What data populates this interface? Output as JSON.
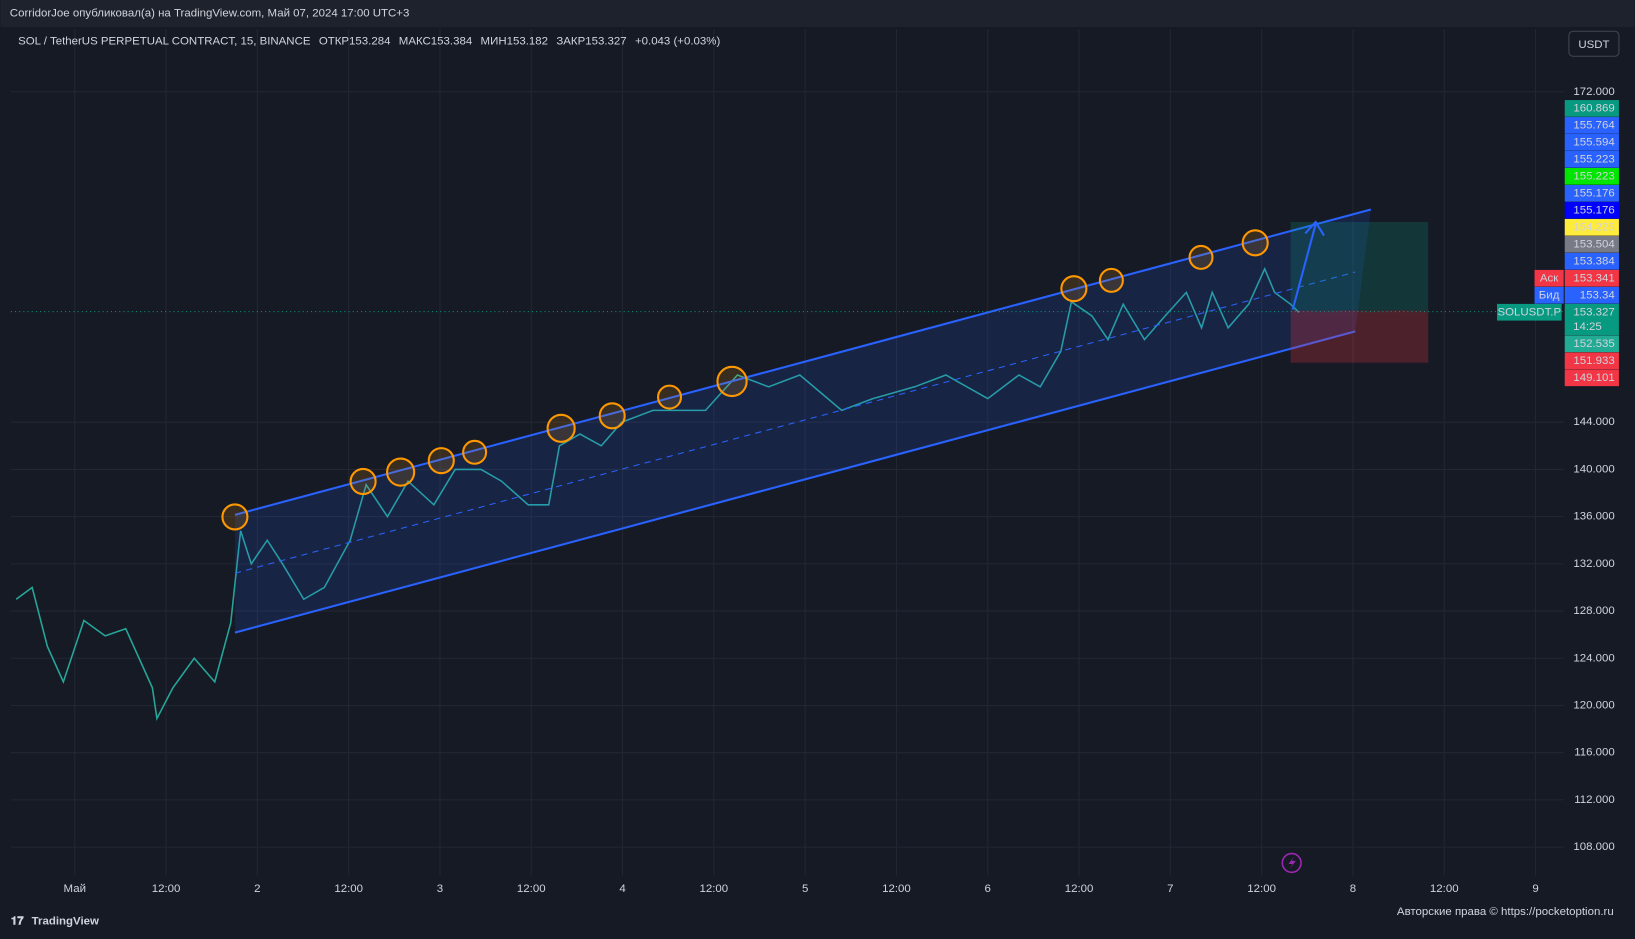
{
  "header": {
    "published": "CorridorJoe опубликовал(а) на TradingView.com, Май 07, 2024 17:00 UTC+3",
    "symbol": "SOL / TetherUS PERPETUAL CONTRACT, 15, BINANCE",
    "ohlc": [
      {
        "label": "ОТКР",
        "value": 153.284
      },
      {
        "label": "МАКС",
        "value": 153.384
      },
      {
        "label": "МИН",
        "value": 153.182
      },
      {
        "label": "ЗАКР",
        "value": 153.327
      }
    ],
    "change": "+0.043 (+0.03%)",
    "currency": "USDT"
  },
  "chart_data": {
    "type": "line",
    "x": [
      -7.7,
      -5.6,
      -3.6,
      -1.5,
      1.2,
      4.0,
      6.7,
      10.2,
      10.8,
      12.9,
      15.7,
      18.4,
      20.5,
      21.8,
      23.2,
      25.3,
      27.3,
      30.1,
      32.8,
      36.2,
      38.3,
      41.1,
      43.8,
      47.2,
      50.0,
      53.4,
      56.1,
      59.6,
      62.3,
      63.7,
      66.4,
      69.2,
      71.9,
      76.0,
      80.2,
      82.9,
      87.1,
      91.2,
      95.3,
      100.8,
      104.9,
      110.4,
      114.5,
      120.0,
      124.1,
      126.9,
      129.6,
      131.0,
      133.7,
      135.8,
      137.8,
      140.6,
      143.3,
      146.1,
      148.1,
      149.5,
      151.6,
      154.3,
      156.4,
      157.7,
      159.8,
      160.9
    ],
    "series": [
      {
        "name": "SOLUSDT.P",
        "color": "#26a69a",
        "values": [
          129.0,
          130.0,
          125.0,
          122.0,
          127.2,
          125.9,
          126.5,
          121.5,
          118.9,
          121.5,
          124.0,
          122.0,
          127.0,
          134.8,
          132.0,
          134.0,
          132.0,
          129.0,
          130.0,
          134.0,
          138.7,
          136.0,
          139.0,
          137.0,
          140.0,
          140.0,
          139.0,
          137.0,
          137.0,
          142.0,
          143.0,
          142.0,
          144.0,
          145.0,
          145.0,
          145.0,
          148.0,
          147.0,
          148.0,
          145.0,
          146.0,
          147.0,
          148.0,
          146.0,
          148.0,
          147.0,
          150.0,
          154.2,
          153.0,
          151.0,
          154.0,
          151.0,
          153.0,
          155.0,
          152.0,
          155.0,
          152.0,
          154.0,
          157.0,
          155.0,
          154.0,
          153.3
        ]
      }
    ],
    "xlim": [
      -8.4,
      195.7
    ],
    "xticks": [
      {
        "value": 0,
        "label": "Май"
      },
      {
        "value": 12,
        "label": "12:00"
      },
      {
        "value": 24,
        "label": "2"
      },
      {
        "value": 36,
        "label": "12:00"
      },
      {
        "value": 48,
        "label": "3"
      },
      {
        "value": 60,
        "label": "12:00"
      },
      {
        "value": 72,
        "label": "4"
      },
      {
        "value": 84,
        "label": "12:00"
      },
      {
        "value": 96,
        "label": "5"
      },
      {
        "value": 108,
        "label": "12:00"
      },
      {
        "value": 120,
        "label": "6"
      },
      {
        "value": 132,
        "label": "12:00"
      },
      {
        "value": 144,
        "label": "7"
      },
      {
        "value": 156,
        "label": "12:00"
      },
      {
        "value": 168,
        "label": "8"
      },
      {
        "value": 180,
        "label": "12:00"
      },
      {
        "value": 192,
        "label": "9"
      }
    ],
    "ylim": [
      105.6,
      177.3
    ],
    "yticks": [
      {
        "value": 172,
        "label": "172.000"
      },
      {
        "value": 144,
        "label": "144.000"
      },
      {
        "value": 140,
        "label": "140.000"
      },
      {
        "value": 136,
        "label": "136.000"
      },
      {
        "value": 132,
        "label": "132.000"
      },
      {
        "value": 128,
        "label": "128.000"
      },
      {
        "value": 124,
        "label": "124.000"
      },
      {
        "value": 120,
        "label": "120.000"
      },
      {
        "value": 116,
        "label": "116.000"
      },
      {
        "value": 112,
        "label": "112.000"
      },
      {
        "value": 108,
        "label": "108.000"
      }
    ],
    "grid": true
  },
  "price_labels": [
    {
      "value": 160.869,
      "color": "#089981"
    },
    {
      "value": 155.764,
      "color": "#2962ff"
    },
    {
      "value": 155.594,
      "color": "#2962ff"
    },
    {
      "value": 155.223,
      "color": "#2962ff"
    },
    {
      "value": 155.223,
      "color": "#00e600"
    },
    {
      "value": 155.176,
      "color": "#2962ff"
    },
    {
      "value": 155.176,
      "color": "#0000ff"
    },
    {
      "value": 154.225,
      "color": "#ffeb3b"
    },
    {
      "value": 153.504,
      "color": "#787b86"
    },
    {
      "value": 153.384,
      "color": "#2962ff"
    },
    {
      "value": 153.341,
      "color": "#f23645",
      "tag": "Аск"
    },
    {
      "value": 153.34,
      "color": "#2962ff",
      "tag": "Бид"
    },
    {
      "value": 153.327,
      "color": "#089981",
      "tag": "SOLUSDT.P",
      "timer": "14:25"
    },
    {
      "value": 152.535,
      "color": "#22ab94"
    },
    {
      "value": 151.933,
      "color": "#f23645"
    },
    {
      "value": 149.101,
      "color": "#f23645"
    }
  ],
  "footer": {
    "logo": "TradingView",
    "watermark": "Авторские права © https://pocketoption.ru"
  }
}
